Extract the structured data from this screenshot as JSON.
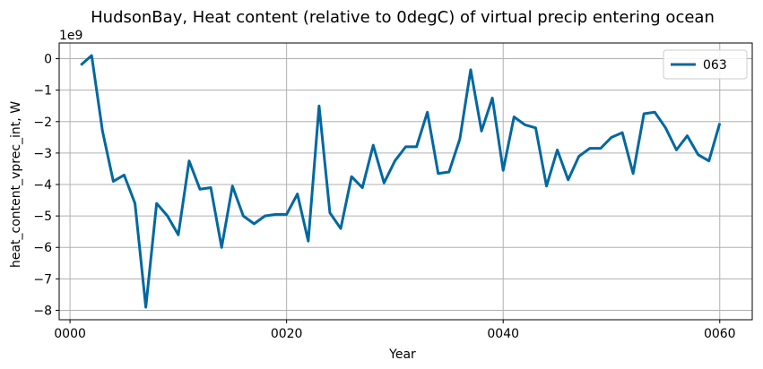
{
  "chart_data": {
    "type": "line",
    "title": "HudsonBay, Heat content (relative to 0degC) of virtual precip entering ocean",
    "xlabel": "Year",
    "ylabel": "heat_content_vprec_int, W",
    "y_offset_label": "1e9",
    "xlim": [
      -1,
      63
    ],
    "ylim": [
      -8.3,
      0.5
    ],
    "x_ticks": [
      0,
      20,
      40,
      60
    ],
    "x_tick_labels": [
      "0000",
      "0020",
      "0040",
      "0060"
    ],
    "y_ticks": [
      0,
      -1,
      -2,
      -3,
      -4,
      -5,
      -6,
      -7,
      -8
    ],
    "y_tick_labels": [
      "0",
      "−1",
      "−2",
      "−3",
      "−4",
      "−5",
      "−6",
      "−7",
      "−8"
    ],
    "grid": true,
    "legend_position": "top-right",
    "series": [
      {
        "name": "063",
        "color": "#0068a0",
        "x": [
          1,
          2,
          3,
          4,
          5,
          6,
          7,
          8,
          9,
          10,
          11,
          12,
          13,
          14,
          15,
          16,
          17,
          18,
          19,
          20,
          21,
          22,
          23,
          24,
          25,
          26,
          27,
          28,
          29,
          30,
          31,
          32,
          33,
          34,
          35,
          36,
          37,
          38,
          39,
          40,
          41,
          42,
          43,
          44,
          45,
          46,
          47,
          48,
          49,
          50,
          51,
          52,
          53,
          54,
          55,
          56,
          57,
          58,
          59,
          60
        ],
        "values": [
          -0.2,
          0.1,
          -2.3,
          -3.9,
          -3.7,
          -4.6,
          -7.9,
          -4.6,
          -5.0,
          -5.6,
          -3.25,
          -4.15,
          -4.1,
          -6.0,
          -4.05,
          -5.0,
          -5.25,
          -5.0,
          -4.95,
          -4.95,
          -4.3,
          -5.8,
          -1.5,
          -4.9,
          -5.4,
          -3.75,
          -4.1,
          -2.75,
          -3.95,
          -3.25,
          -2.8,
          -2.8,
          -1.7,
          -3.65,
          -3.6,
          -2.55,
          -0.35,
          -2.3,
          -1.25,
          -3.55,
          -1.85,
          -2.1,
          -2.2,
          -4.05,
          -2.9,
          -3.85,
          -3.1,
          -2.85,
          -2.85,
          -2.5,
          -2.35,
          -3.65,
          -1.75,
          -1.7,
          -2.2,
          -2.9,
          -2.45,
          -3.05,
          -3.25,
          -2.05
        ]
      }
    ]
  }
}
